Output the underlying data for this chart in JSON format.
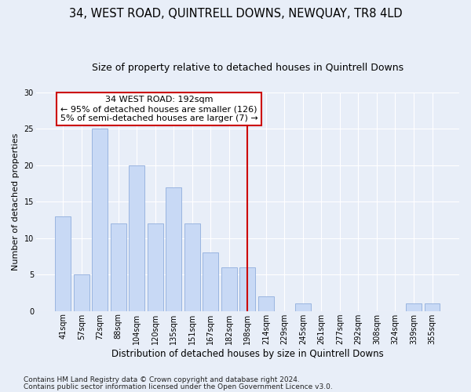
{
  "title": "34, WEST ROAD, QUINTRELL DOWNS, NEWQUAY, TR8 4LD",
  "subtitle": "Size of property relative to detached houses in Quintrell Downs",
  "xlabel": "Distribution of detached houses by size in Quintrell Downs",
  "ylabel": "Number of detached properties",
  "categories": [
    "41sqm",
    "57sqm",
    "72sqm",
    "88sqm",
    "104sqm",
    "120sqm",
    "135sqm",
    "151sqm",
    "167sqm",
    "182sqm",
    "198sqm",
    "214sqm",
    "229sqm",
    "245sqm",
    "261sqm",
    "277sqm",
    "292sqm",
    "308sqm",
    "324sqm",
    "339sqm",
    "355sqm"
  ],
  "values": [
    13,
    5,
    25,
    12,
    20,
    12,
    17,
    12,
    8,
    6,
    6,
    2,
    0,
    1,
    0,
    0,
    0,
    0,
    0,
    1,
    1
  ],
  "bar_color": "#c8d9f5",
  "bar_edgecolor": "#9ab5e0",
  "vline_x": 10.0,
  "vline_color": "#cc0000",
  "annotation_text": "34 WEST ROAD: 192sqm\n← 95% of detached houses are smaller (126)\n5% of semi-detached houses are larger (7) →",
  "annotation_box_facecolor": "white",
  "annotation_box_edgecolor": "#cc0000",
  "ylim": [
    0,
    30
  ],
  "yticks": [
    0,
    5,
    10,
    15,
    20,
    25,
    30
  ],
  "footer_line1": "Contains HM Land Registry data © Crown copyright and database right 2024.",
  "footer_line2": "Contains public sector information licensed under the Open Government Licence v3.0.",
  "background_color": "#e8eef8",
  "grid_color": "white",
  "title_fontsize": 10.5,
  "subtitle_fontsize": 9,
  "xlabel_fontsize": 8.5,
  "ylabel_fontsize": 8,
  "tick_fontsize": 7,
  "annotation_fontsize": 8,
  "footer_fontsize": 6.5
}
